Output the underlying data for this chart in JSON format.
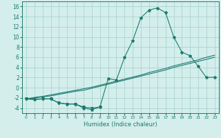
{
  "x": [
    0,
    1,
    2,
    3,
    4,
    5,
    6,
    7,
    8,
    9,
    10,
    11,
    12,
    13,
    14,
    15,
    16,
    17,
    18,
    19,
    20,
    21,
    22,
    23
  ],
  "line_main": [
    -2.2,
    -2.3,
    -2.2,
    -2.2,
    -3.0,
    -3.2,
    -3.2,
    -4.0,
    -4.3,
    -3.8,
    1.8,
    1.5,
    6.0,
    9.3,
    13.8,
    15.3,
    15.7,
    14.8,
    10.0,
    7.0,
    6.3,
    4.2,
    2.0,
    2.1
  ],
  "line_flat": [
    -2.2,
    -2.3,
    -2.2,
    -2.2,
    -3.0,
    -3.2,
    -3.2,
    -3.8,
    -4.0,
    -3.8
  ],
  "line_upper": [
    -2.2,
    -1.9,
    -1.7,
    -1.4,
    -1.1,
    -0.8,
    -0.5,
    -0.2,
    0.1,
    0.5,
    0.9,
    1.3,
    1.7,
    2.1,
    2.5,
    3.0,
    3.4,
    3.8,
    4.3,
    4.7,
    5.1,
    5.5,
    6.0,
    6.4
  ],
  "line_lower": [
    -2.2,
    -2.0,
    -1.8,
    -1.6,
    -1.3,
    -1.0,
    -0.7,
    -0.5,
    -0.1,
    0.3,
    0.7,
    1.1,
    1.5,
    1.9,
    2.3,
    2.7,
    3.1,
    3.5,
    4.0,
    4.4,
    4.8,
    5.2,
    5.6,
    6.0
  ],
  "line_color": "#1a7a6e",
  "background_color": "#d4eeec",
  "grid_color": "#aad4d0",
  "xlabel": "Humidex (Indice chaleur)",
  "ylim": [
    -5,
    17
  ],
  "xlim": [
    -0.5,
    23.5
  ],
  "yticks": [
    -4,
    -2,
    0,
    2,
    4,
    6,
    8,
    10,
    12,
    14,
    16
  ],
  "xticks": [
    0,
    1,
    2,
    3,
    4,
    5,
    6,
    7,
    8,
    9,
    10,
    11,
    12,
    13,
    14,
    15,
    16,
    17,
    18,
    19,
    20,
    21,
    22,
    23
  ],
  "xlabel_fontsize": 6.0,
  "tick_fontsize_x": 4.2,
  "tick_fontsize_y": 5.5
}
